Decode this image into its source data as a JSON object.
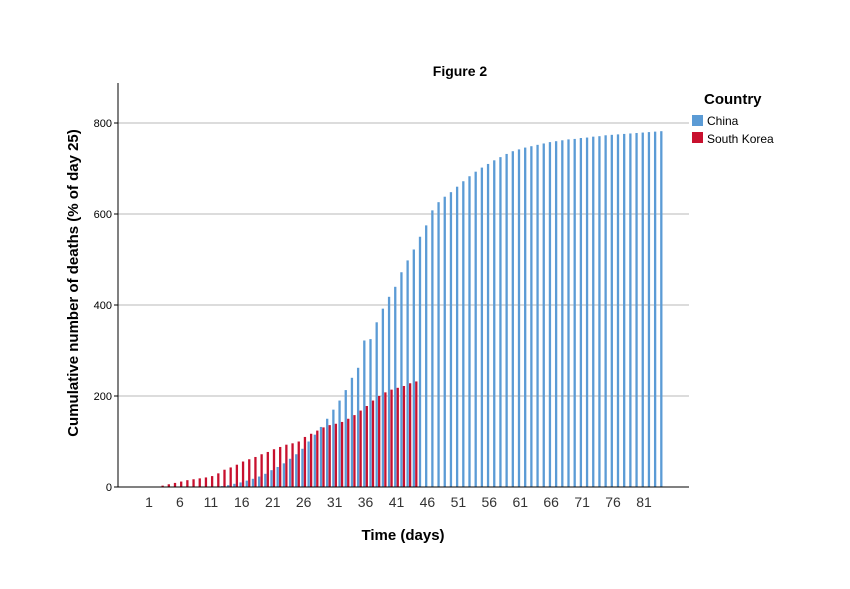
{
  "chart_data": {
    "type": "bar",
    "title": "Figure 2",
    "xlabel": "Time (days)",
    "ylabel": "Cumulative number of deaths (% of day 25)",
    "ylim": [
      0,
      890
    ],
    "yticks": [
      0,
      200,
      400,
      600,
      800
    ],
    "xticks": [
      1,
      6,
      11,
      16,
      21,
      26,
      31,
      36,
      41,
      46,
      51,
      56,
      61,
      66,
      71,
      76,
      81
    ],
    "x_range": [
      1,
      84
    ],
    "grid": "horizontal",
    "legend": {
      "title": "Country",
      "position": "right"
    },
    "series": [
      {
        "name": "China",
        "color": "#5b9bd5",
        "x_start": 1,
        "values": [
          0,
          0,
          0,
          0,
          0,
          0,
          0,
          0,
          0,
          0,
          0,
          0,
          2,
          4,
          7,
          10,
          14,
          18,
          23,
          29,
          37,
          44,
          52,
          62,
          72,
          84,
          100,
          115,
          132,
          150,
          170,
          190,
          213,
          240,
          262,
          322,
          325,
          362,
          392,
          418,
          440,
          472,
          498,
          522,
          550,
          575,
          608,
          626,
          638,
          648,
          660,
          672,
          683,
          693,
          702,
          710,
          718,
          725,
          732,
          738,
          742,
          746,
          749,
          752,
          755,
          758,
          760,
          762,
          764,
          765,
          767,
          768,
          770,
          771,
          773,
          774,
          775,
          776,
          777,
          778,
          779,
          780,
          781,
          782
        ]
      },
      {
        "name": "South Korea",
        "color": "#c8102e",
        "x_start": 1,
        "values": [
          0,
          0,
          3,
          6,
          9,
          12,
          15,
          17,
          19,
          21,
          24,
          30,
          38,
          43,
          49,
          56,
          61,
          66,
          72,
          77,
          83,
          88,
          93,
          96,
          100,
          110,
          117,
          124,
          131,
          136,
          139,
          143,
          150,
          158,
          168,
          178,
          190,
          200,
          208,
          214,
          218,
          222,
          228,
          232
        ]
      }
    ]
  }
}
